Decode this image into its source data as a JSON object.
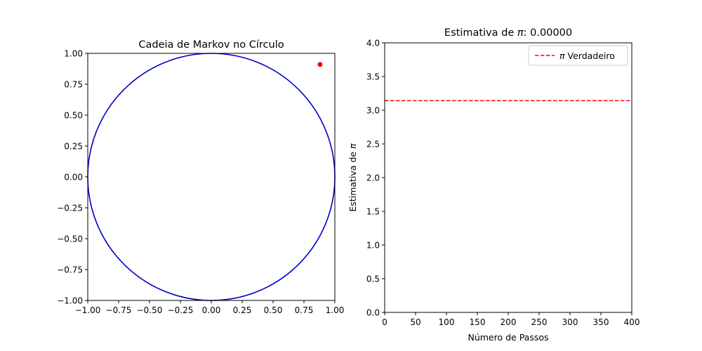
{
  "chart_data": [
    {
      "type": "scatter",
      "title": "Cadeia de Markov no Círculo",
      "xlabel": "",
      "ylabel": "",
      "xlim": [
        -1.0,
        1.0
      ],
      "ylim": [
        -1.0,
        1.0
      ],
      "x_ticks": [
        -1.0,
        -0.75,
        -0.5,
        -0.25,
        0.0,
        0.25,
        0.5,
        0.75,
        1.0
      ],
      "y_ticks": [
        -1.0,
        -0.75,
        -0.5,
        -0.25,
        0.0,
        0.25,
        0.5,
        0.75,
        1.0
      ],
      "x_tick_labels": [
        "−1.00",
        "−0.75",
        "−0.50",
        "−0.25",
        "0.00",
        "0.25",
        "0.50",
        "0.75",
        "1.00"
      ],
      "y_tick_labels": [
        "−1.00",
        "−0.75",
        "−0.50",
        "−0.25",
        "0.00",
        "0.25",
        "0.50",
        "0.75",
        "1.00"
      ],
      "circle": {
        "center": [
          0,
          0
        ],
        "radius": 1.0,
        "color": "#0000cc"
      },
      "points": [
        {
          "x": 0.88,
          "y": 0.91,
          "color": "#ff0000"
        }
      ],
      "grid": false
    },
    {
      "type": "line",
      "title_prefix": "Estimativa de ",
      "title_symbol": "π",
      "title_suffix": ": 0.00000",
      "xlabel": "Número de Passos",
      "ylabel_prefix": "Estimativa de ",
      "ylabel_symbol": "π",
      "xlim": [
        0,
        400
      ],
      "ylim": [
        0.0,
        4.0
      ],
      "x_ticks": [
        0,
        50,
        100,
        150,
        200,
        250,
        300,
        350,
        400
      ],
      "y_ticks": [
        0.0,
        0.5,
        1.0,
        1.5,
        2.0,
        2.5,
        3.0,
        3.5,
        4.0
      ],
      "x_tick_labels": [
        "0",
        "50",
        "100",
        "150",
        "200",
        "250",
        "300",
        "350",
        "400"
      ],
      "y_tick_labels": [
        "0.0",
        "0.5",
        "1.0",
        "1.5",
        "2.0",
        "2.5",
        "3.0",
        "3.5",
        "4.0"
      ],
      "series": [],
      "reference_line": {
        "y": 3.14159,
        "color": "#ff0000",
        "style": "dashed",
        "legend_symbol": "π",
        "legend_text": " Verdadeiro"
      },
      "legend_placement": "top-right",
      "grid": false
    }
  ]
}
